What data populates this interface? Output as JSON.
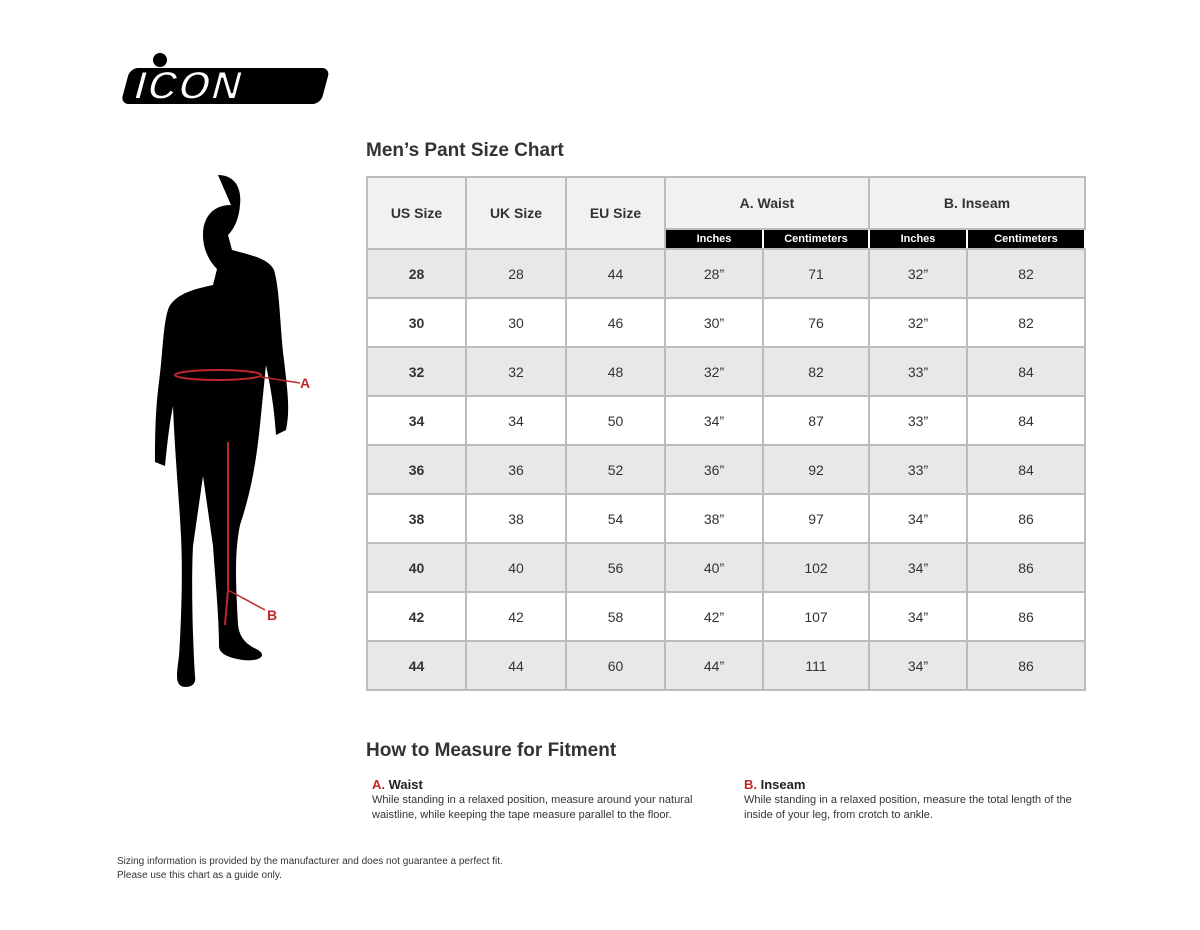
{
  "brand": {
    "logo_text": "ICON"
  },
  "chart_title": "Men’s Pant Size Chart",
  "table": {
    "headers": {
      "us": "US Size",
      "uk": "UK Size",
      "eu": "EU Size",
      "waist": "A. Waist",
      "inseam": "B. Inseam",
      "inches": "Inches",
      "cm": "Centimeters"
    },
    "rows": [
      [
        "28",
        "28",
        "44",
        "28”",
        "71",
        "32”",
        "82"
      ],
      [
        "30",
        "30",
        "46",
        "30”",
        "76",
        "32”",
        "82"
      ],
      [
        "32",
        "32",
        "48",
        "32”",
        "82",
        "33”",
        "84"
      ],
      [
        "34",
        "34",
        "50",
        "34”",
        "87",
        "33”",
        "84"
      ],
      [
        "36",
        "36",
        "52",
        "36”",
        "92",
        "33”",
        "84"
      ],
      [
        "38",
        "38",
        "54",
        "38”",
        "97",
        "34”",
        "86"
      ],
      [
        "40",
        "40",
        "56",
        "40”",
        "102",
        "34”",
        "86"
      ],
      [
        "42",
        "42",
        "58",
        "42”",
        "107",
        "34”",
        "86"
      ],
      [
        "44",
        "44",
        "60",
        "44”",
        "111",
        "34”",
        "86"
      ]
    ]
  },
  "figure": {
    "label_a": "A",
    "label_b": "B",
    "accent": "#c0272d"
  },
  "measure": {
    "title": "How to Measure for Fitment",
    "waist": {
      "letter": "A.",
      "name": "Waist",
      "text": "While standing in a relaxed position, measure around your natural waistline, while keeping the tape measure parallel to the floor."
    },
    "inseam": {
      "letter": "B.",
      "name": "Inseam",
      "text": "While standing in a relaxed position, measure the total length of the inside of your leg, from crotch to ankle."
    }
  },
  "disclaimer": {
    "line1": "Sizing information is provided by the manufacturer and does not guarantee a perfect fit.",
    "line2": "Please use this chart as a guide only."
  }
}
